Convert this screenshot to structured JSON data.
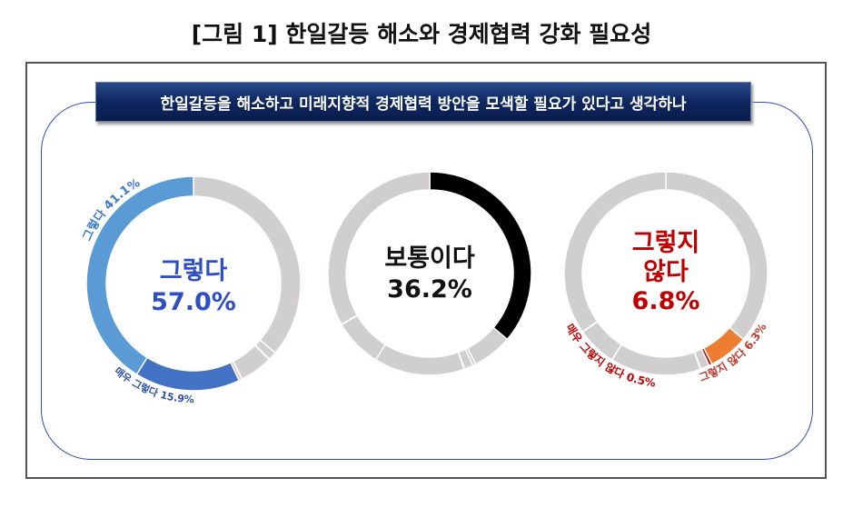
{
  "title": "[그림 1] 한일갈등 해소와 경제협력 강화 필요성",
  "banner": "한일갈등을 해소하고 미래지향적 경제협력 방안을 모색할 필요가 있다고 생각하나",
  "chart_data": {
    "type": "pie",
    "categories": [
      "보통이다",
      "그렇지 않다",
      "매우 그렇지 않다",
      "매우 그렇다",
      "그렇다"
    ],
    "values": [
      36.2,
      6.3,
      0.5,
      15.9,
      41.1
    ],
    "base_color": "#d0cece",
    "donuts": [
      {
        "center_lines": [
          "그렇다",
          "57.0%"
        ],
        "center_color": "#2e4fc4",
        "highlight": {
          "매우 그렇다": "#4472c4",
          "그렇다": "#5b9bd5"
        },
        "labels": [
          {
            "text": "그렇다 41.1%",
            "color": "#3a78c8"
          },
          {
            "text": "매우 그렇다 15.9%",
            "color": "#2e4fa8"
          }
        ]
      },
      {
        "center_lines": [
          "보통이다",
          "36.2%"
        ],
        "center_color": "#111111",
        "highlight": {
          "보통이다": "#000000"
        },
        "labels": []
      },
      {
        "center_lines": [
          "그렇지",
          "않다",
          "6.8%"
        ],
        "center_color": "#c00000",
        "highlight": {
          "그렇지 않다": "#ed7d31",
          "매우 그렇지 않다": "#c00000"
        },
        "labels": [
          {
            "text": "매우 그렇지 않다 0.5%",
            "color": "#c00000"
          },
          {
            "text": "그렇지 않다 6.3%",
            "color": "#c0392b"
          }
        ]
      }
    ]
  }
}
